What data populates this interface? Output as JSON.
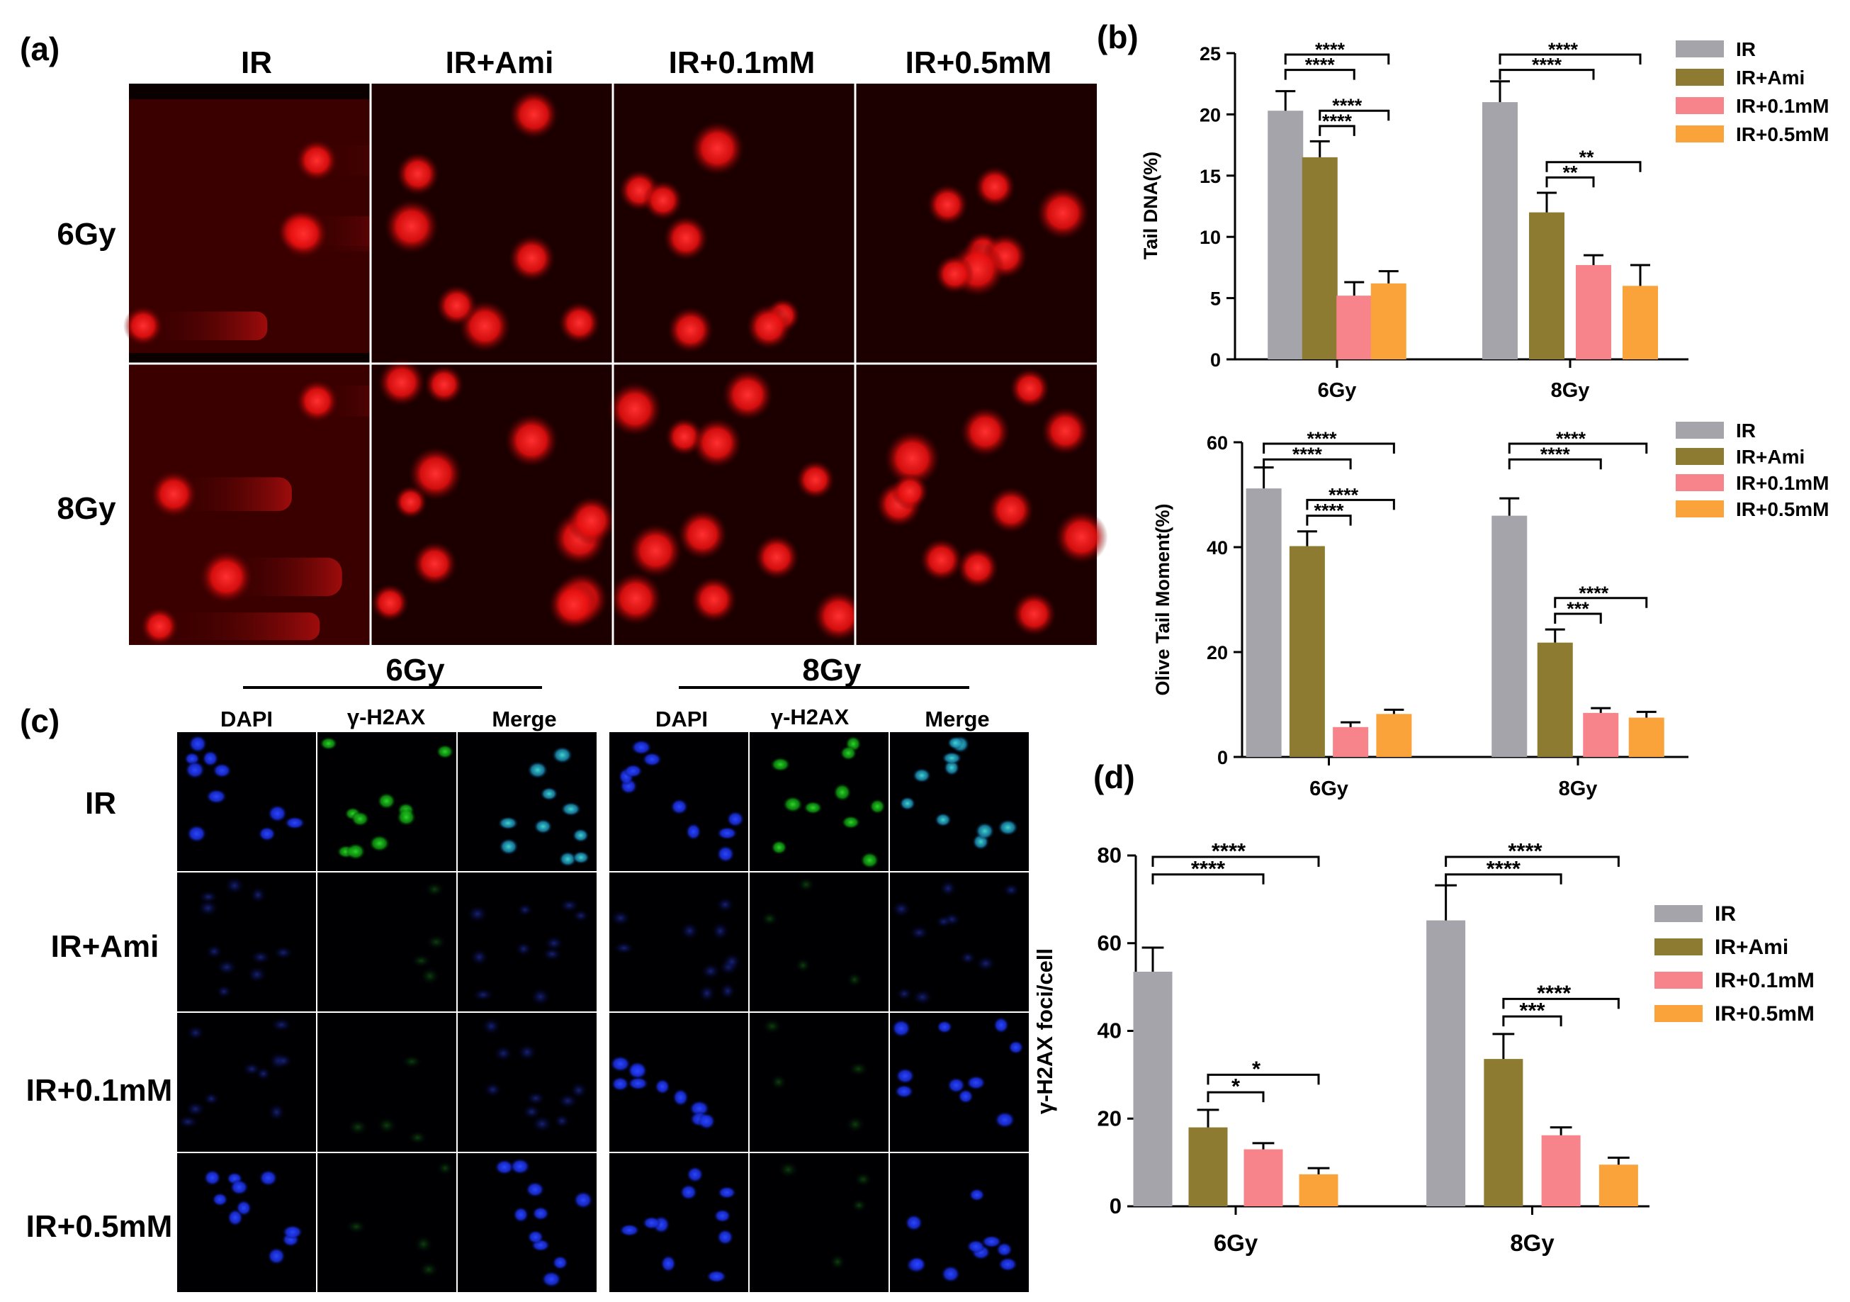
{
  "panel_a": {
    "label": "(a)",
    "columns": [
      "IR",
      "IR+Ami",
      "IR+0.1mM",
      "IR+0.5mM"
    ],
    "rows": [
      "6Gy",
      "8Gy"
    ]
  },
  "panel_c": {
    "label": "(c)",
    "groups": [
      "6Gy",
      "8Gy"
    ],
    "channels": [
      "DAPI",
      "γ-H2AX",
      "Merge"
    ],
    "rows": [
      "IR",
      "IR+Ami",
      "IR+0.1mM",
      "IR+0.5mM"
    ]
  },
  "colors": {
    "IR": "#A5A4AA",
    "IR+Ami": "#8E7B32",
    "IR+0.1mM": "#F7848A",
    "IR+0.5mM": "#FAA33A"
  },
  "chart_data": [
    {
      "id": "b1",
      "panel_label": "(b)",
      "type": "bar",
      "title": "",
      "xlabel": "",
      "ylabel": "Tail DNA(%)",
      "ylim": [
        0,
        25
      ],
      "yticks": [
        0,
        5,
        10,
        15,
        20,
        25
      ],
      "categories": [
        "6Gy",
        "8Gy"
      ],
      "legend": [
        "IR",
        "IR+Ami",
        "IR+0.1mM",
        "IR+0.5mM"
      ],
      "series": [
        {
          "name": "IR",
          "values": [
            20.3,
            21.0
          ],
          "errors": [
            1.6,
            1.7
          ]
        },
        {
          "name": "IR+Ami",
          "values": [
            16.5,
            12.0
          ],
          "errors": [
            1.3,
            1.6
          ]
        },
        {
          "name": "IR+0.1mM",
          "values": [
            5.2,
            7.7
          ],
          "errors": [
            1.1,
            0.8
          ]
        },
        {
          "name": "IR+0.5mM",
          "values": [
            6.2,
            6.0
          ],
          "errors": [
            1.0,
            1.7
          ]
        }
      ],
      "significance": [
        {
          "cat": 0,
          "from": 0,
          "to": 3,
          "label": "****"
        },
        {
          "cat": 0,
          "from": 0,
          "to": 2,
          "label": "****"
        },
        {
          "cat": 0,
          "from": 1,
          "to": 3,
          "label": "****"
        },
        {
          "cat": 0,
          "from": 1,
          "to": 2,
          "label": "****"
        },
        {
          "cat": 1,
          "from": 0,
          "to": 3,
          "label": "****"
        },
        {
          "cat": 1,
          "from": 0,
          "to": 2,
          "label": "****"
        },
        {
          "cat": 1,
          "from": 1,
          "to": 3,
          "label": "**"
        },
        {
          "cat": 1,
          "from": 1,
          "to": 2,
          "label": "**"
        }
      ]
    },
    {
      "id": "b2",
      "panel_label": "",
      "type": "bar",
      "title": "",
      "xlabel": "",
      "ylabel": "Olive Tail Moment(%)",
      "ylim": [
        0,
        60
      ],
      "yticks": [
        0,
        20,
        40,
        60
      ],
      "categories": [
        "6Gy",
        "8Gy"
      ],
      "legend": [
        "IR",
        "IR+Ami",
        "IR+0.1mM",
        "IR+0.5mM"
      ],
      "series": [
        {
          "name": "IR",
          "values": [
            51.2,
            46.0
          ],
          "errors": [
            4.0,
            3.3
          ]
        },
        {
          "name": "IR+Ami",
          "values": [
            40.2,
            21.8
          ],
          "errors": [
            2.8,
            2.5
          ]
        },
        {
          "name": "IR+0.1mM",
          "values": [
            5.7,
            8.4
          ],
          "errors": [
            0.9,
            0.9
          ]
        },
        {
          "name": "IR+0.5mM",
          "values": [
            8.2,
            7.5
          ],
          "errors": [
            0.8,
            1.1
          ]
        }
      ],
      "significance": [
        {
          "cat": 0,
          "from": 0,
          "to": 3,
          "label": "****"
        },
        {
          "cat": 0,
          "from": 0,
          "to": 2,
          "label": "****"
        },
        {
          "cat": 0,
          "from": 1,
          "to": 3,
          "label": "****"
        },
        {
          "cat": 0,
          "from": 1,
          "to": 2,
          "label": "****"
        },
        {
          "cat": 1,
          "from": 0,
          "to": 3,
          "label": "****"
        },
        {
          "cat": 1,
          "from": 0,
          "to": 2,
          "label": "****"
        },
        {
          "cat": 1,
          "from": 1,
          "to": 3,
          "label": "****"
        },
        {
          "cat": 1,
          "from": 1,
          "to": 2,
          "label": "***"
        }
      ]
    },
    {
      "id": "d",
      "panel_label": "(d)",
      "type": "bar",
      "title": "",
      "xlabel": "",
      "ylabel": "γ-H2AX foci/cell",
      "ylim": [
        0,
        80
      ],
      "yticks": [
        0,
        20,
        40,
        60,
        80
      ],
      "categories": [
        "6Gy",
        "8Gy"
      ],
      "legend": [
        "IR",
        "IR+Ami",
        "IR+0.1mM",
        "IR+0.5mM"
      ],
      "series": [
        {
          "name": "IR",
          "values": [
            53.5,
            65.2
          ],
          "errors": [
            5.5,
            8.0
          ]
        },
        {
          "name": "IR+Ami",
          "values": [
            18.0,
            33.6
          ],
          "errors": [
            4.0,
            5.7
          ]
        },
        {
          "name": "IR+0.1mM",
          "values": [
            13.0,
            16.2
          ],
          "errors": [
            1.4,
            1.8
          ]
        },
        {
          "name": "IR+0.5mM",
          "values": [
            7.3,
            9.5
          ],
          "errors": [
            1.4,
            1.6
          ]
        }
      ],
      "significance": [
        {
          "cat": 0,
          "from": 0,
          "to": 3,
          "label": "****"
        },
        {
          "cat": 0,
          "from": 0,
          "to": 2,
          "label": "****"
        },
        {
          "cat": 0,
          "from": 1,
          "to": 3,
          "label": "*"
        },
        {
          "cat": 0,
          "from": 1,
          "to": 2,
          "label": "*"
        },
        {
          "cat": 1,
          "from": 0,
          "to": 3,
          "label": "****"
        },
        {
          "cat": 1,
          "from": 0,
          "to": 2,
          "label": "****"
        },
        {
          "cat": 1,
          "from": 1,
          "to": 3,
          "label": "****"
        },
        {
          "cat": 1,
          "from": 1,
          "to": 2,
          "label": "***"
        }
      ]
    }
  ]
}
